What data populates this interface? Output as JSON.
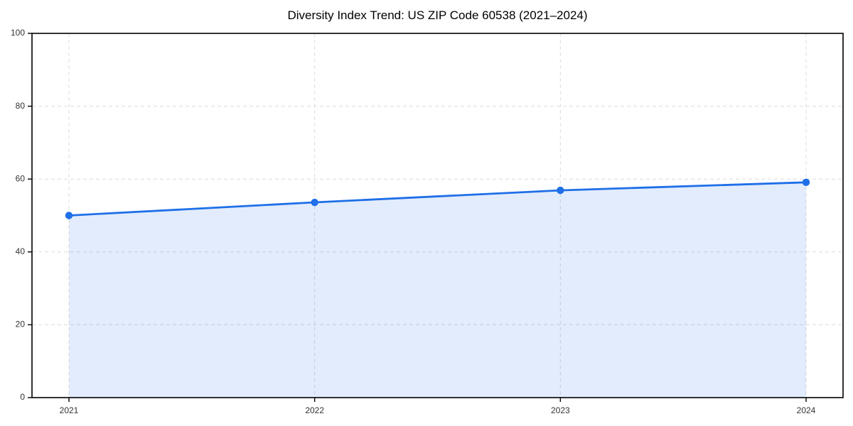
{
  "chart_data": {
    "type": "area",
    "title": "Diversity Index Trend: US ZIP Code 60538 (2021–2024)",
    "x": [
      "2021",
      "2022",
      "2023",
      "2024"
    ],
    "series": [
      {
        "name": "Diversity Index",
        "values": [
          50,
          53.6,
          56.9,
          59.1
        ]
      }
    ],
    "xlabel": "",
    "ylabel": "",
    "ylim": [
      0,
      100
    ],
    "y_ticks": [
      0,
      20,
      40,
      60,
      80,
      100
    ],
    "grid": true,
    "grid_style": "dashed",
    "legend": false,
    "marker": "circle",
    "colors": {
      "line": "#1f6fe8",
      "marker": "#1f6fe8",
      "fill": "rgba(31, 111, 232, 0.13)",
      "grid": "#dcdcdc",
      "axis": "#000000",
      "tick_label": "#333333",
      "title": "#000000"
    }
  }
}
